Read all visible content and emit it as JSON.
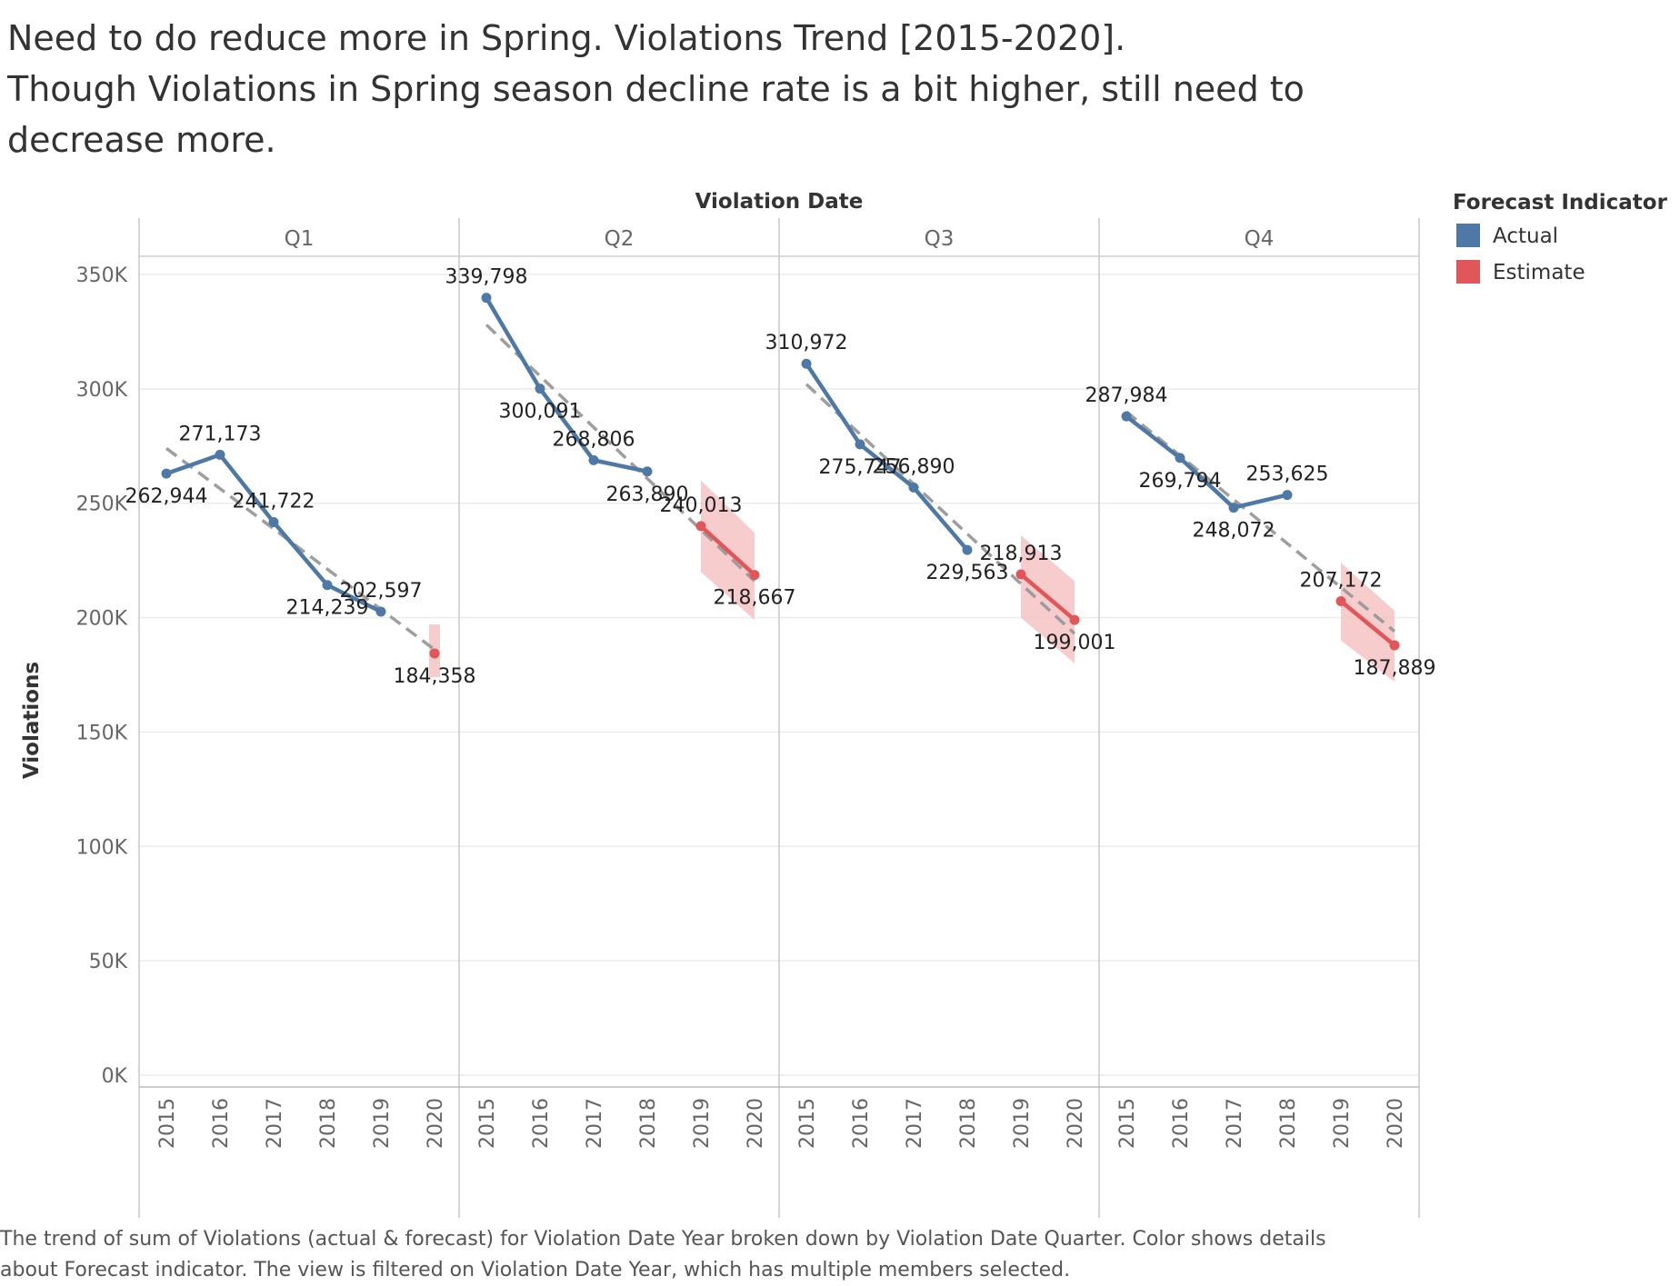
{
  "title_lines": [
    "Need to do reduce more in Spring. Violations Trend [2015-2020].",
    "Though Violations in Spring season decline rate is a bit higher, still need to",
    "decrease more."
  ],
  "caption_lines": [
    "The trend of sum of Violations (actual & forecast)  for Violation Date Year broken down by Violation Date Quarter.  Color shows details",
    "about Forecast indicator. The view is filtered on Violation Date Year, which has multiple members selected."
  ],
  "chart_data": {
    "type": "line",
    "column_header": "Violation Date",
    "ylabel": "Violations",
    "ylim": [
      0,
      350000
    ],
    "y_ticks": [
      0,
      50000,
      100000,
      150000,
      200000,
      250000,
      300000,
      350000
    ],
    "y_tick_labels": [
      "0K",
      "50K",
      "100K",
      "150K",
      "200K",
      "250K",
      "300K",
      "350K"
    ],
    "x": [
      "2015",
      "2016",
      "2017",
      "2018",
      "2019",
      "2020"
    ],
    "grid": true,
    "legend": {
      "title": "Forecast Indicator",
      "placement": "top-right",
      "entries": [
        {
          "label": "Actual",
          "color": "#4e79a7"
        },
        {
          "label": "Estimate",
          "color": "#e15759"
        }
      ]
    },
    "trend_color": "#999999",
    "band_color": "#f4c3c4",
    "panels": [
      {
        "quarter": "Q1",
        "values": [
          262944,
          271173,
          241722,
          214239,
          202597,
          184358
        ],
        "labels": [
          "262,944",
          "271,173",
          "241,722",
          "214,239",
          "202,597",
          "184,358"
        ],
        "forecast_start_index": 5,
        "band": {
          "lower": [
            0,
            0,
            0,
            0,
            0,
            174000
          ],
          "upper": [
            0,
            0,
            0,
            0,
            0,
            197000
          ]
        },
        "trend": [
          274000,
          186000
        ]
      },
      {
        "quarter": "Q2",
        "values": [
          339798,
          300091,
          268806,
          263890,
          240013,
          218667
        ],
        "labels": [
          "339,798",
          "300,091",
          "268,806",
          "263,890",
          "240,013",
          "218,667"
        ],
        "forecast_start_index": 4,
        "band": {
          "lower": [
            0,
            0,
            0,
            0,
            220000,
            199000
          ],
          "upper": [
            0,
            0,
            0,
            0,
            260000,
            237000
          ]
        },
        "trend": [
          328000,
          216000
        ]
      },
      {
        "quarter": "Q3",
        "values": [
          310972,
          275747,
          256890,
          229563,
          218913,
          199001
        ],
        "labels": [
          "310,972",
          "275,747",
          "256,890",
          "229,563",
          "218,913",
          "199,001"
        ],
        "forecast_start_index": 4,
        "band": {
          "lower": [
            0,
            0,
            0,
            0,
            200000,
            180000
          ],
          "upper": [
            0,
            0,
            0,
            0,
            236000,
            216000
          ]
        },
        "trend": [
          302000,
          193000
        ]
      },
      {
        "quarter": "Q4",
        "values": [
          287984,
          269794,
          248072,
          253625,
          207172,
          187889
        ],
        "labels": [
          "287,984",
          "269,794",
          "248,072",
          "253,625",
          "207,172",
          "187,889"
        ],
        "forecast_start_index": 4,
        "band": {
          "lower": [
            0,
            0,
            0,
            0,
            190000,
            172000
          ],
          "upper": [
            0,
            0,
            0,
            0,
            224000,
            203000
          ]
        },
        "trend": [
          290000,
          194000
        ]
      }
    ]
  }
}
